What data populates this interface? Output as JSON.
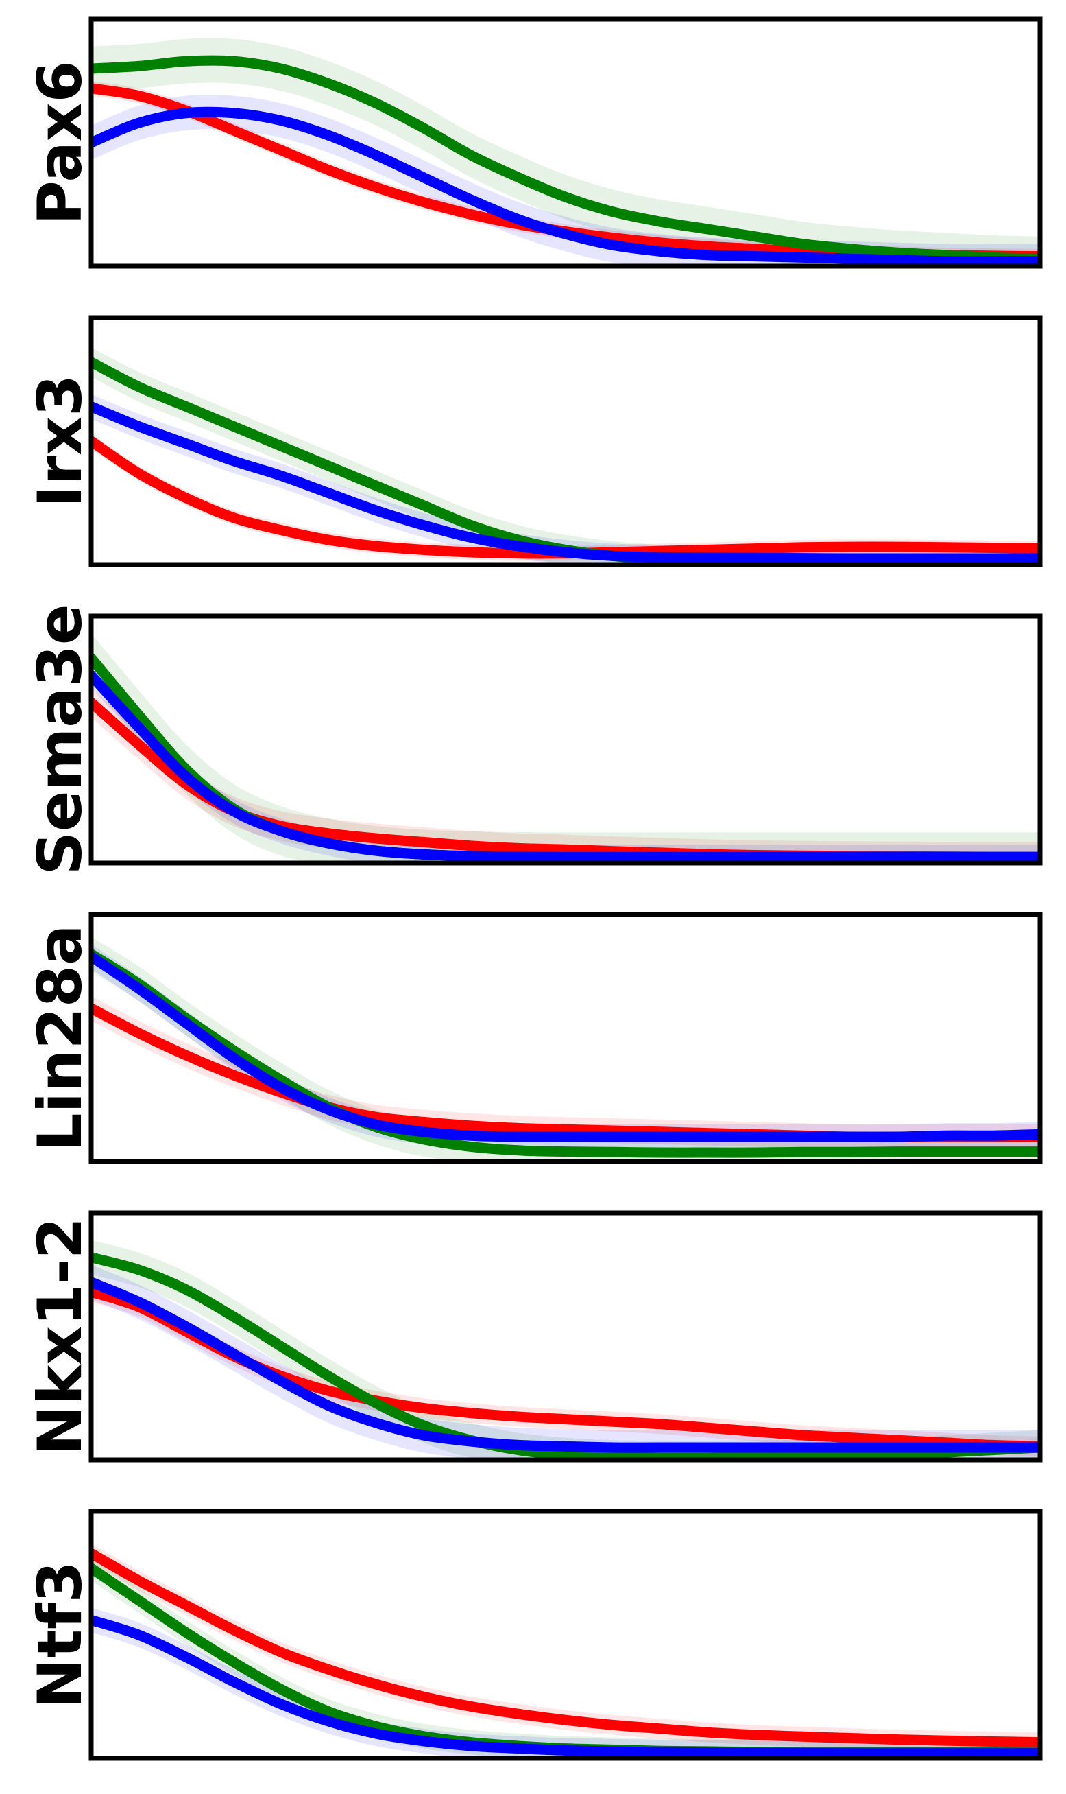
{
  "chart_data": {
    "type": "line",
    "x": [
      0,
      0.05,
      0.1,
      0.15,
      0.2,
      0.25,
      0.3,
      0.35,
      0.4,
      0.45,
      0.5,
      0.55,
      0.6,
      0.65,
      0.7,
      0.75,
      0.8,
      0.85,
      0.9,
      0.95,
      1.0
    ],
    "xlim": [
      0,
      1
    ],
    "ylim": [
      0,
      1
    ],
    "grid": false,
    "colors": [
      "#ff0000",
      "#008000",
      "#0000ff"
    ],
    "panels": [
      {
        "ylabel": "Pax6",
        "series": [
          {
            "color": "#ff0000",
            "values": [
              0.72,
              0.69,
              0.63,
              0.55,
              0.47,
              0.39,
              0.32,
              0.26,
              0.21,
              0.17,
              0.14,
              0.115,
              0.095,
              0.08,
              0.07,
              0.06,
              0.055,
              0.05,
              0.045,
              0.042,
              0.04
            ],
            "band": 0.03
          },
          {
            "color": "#008000",
            "values": [
              0.8,
              0.81,
              0.83,
              0.83,
              0.8,
              0.74,
              0.66,
              0.56,
              0.45,
              0.36,
              0.28,
              0.22,
              0.18,
              0.15,
              0.12,
              0.09,
              0.07,
              0.055,
              0.045,
              0.035,
              0.03
            ],
            "band": 0.09
          },
          {
            "color": "#0000ff",
            "values": [
              0.5,
              0.58,
              0.62,
              0.62,
              0.59,
              0.53,
              0.45,
              0.36,
              0.27,
              0.19,
              0.13,
              0.085,
              0.06,
              0.045,
              0.04,
              0.035,
              0.03,
              0.025,
              0.02,
              0.02,
              0.02
            ],
            "band": 0.07
          }
        ]
      },
      {
        "ylabel": "Irx3",
        "series": [
          {
            "color": "#ff0000",
            "values": [
              0.5,
              0.37,
              0.27,
              0.19,
              0.14,
              0.1,
              0.075,
              0.06,
              0.05,
              0.045,
              0.045,
              0.05,
              0.055,
              0.06,
              0.065,
              0.07,
              0.072,
              0.072,
              0.07,
              0.068,
              0.065
            ],
            "band": 0.03
          },
          {
            "color": "#008000",
            "values": [
              0.82,
              0.72,
              0.64,
              0.56,
              0.48,
              0.4,
              0.32,
              0.24,
              0.16,
              0.1,
              0.06,
              0.035,
              0.02,
              0.01,
              0.005,
              0.005,
              0.005,
              0.005,
              0.005,
              0.005,
              0.005
            ],
            "band": 0.06
          },
          {
            "color": "#0000ff",
            "values": [
              0.64,
              0.56,
              0.49,
              0.42,
              0.36,
              0.29,
              0.22,
              0.16,
              0.11,
              0.075,
              0.05,
              0.035,
              0.03,
              0.028,
              0.027,
              0.026,
              0.025,
              0.025,
              0.025,
              0.025,
              0.025
            ],
            "band": 0.05
          }
        ]
      },
      {
        "ylabel": "Sema3e",
        "series": [
          {
            "color": "#ff0000",
            "values": [
              0.65,
              0.48,
              0.32,
              0.21,
              0.15,
              0.12,
              0.1,
              0.085,
              0.07,
              0.06,
              0.055,
              0.048,
              0.042,
              0.036,
              0.032,
              0.03,
              0.028,
              0.027,
              0.026,
              0.025,
              0.025
            ],
            "band": 0.06
          },
          {
            "color": "#008000",
            "values": [
              0.83,
              0.6,
              0.38,
              0.22,
              0.13,
              0.08,
              0.05,
              0.035,
              0.028,
              0.025,
              0.024,
              0.024,
              0.024,
              0.024,
              0.024,
              0.024,
              0.024,
              0.024,
              0.024,
              0.024,
              0.024
            ],
            "band": 0.1
          },
          {
            "color": "#0000ff",
            "values": [
              0.76,
              0.55,
              0.35,
              0.21,
              0.13,
              0.08,
              0.05,
              0.035,
              0.028,
              0.025,
              0.024,
              0.024,
              0.024,
              0.024,
              0.024,
              0.024,
              0.024,
              0.024,
              0.024,
              0.024,
              0.024
            ],
            "band": 0.05
          }
        ]
      },
      {
        "ylabel": "Lin28a",
        "series": [
          {
            "color": "#ff0000",
            "values": [
              0.62,
              0.52,
              0.43,
              0.35,
              0.28,
              0.22,
              0.18,
              0.16,
              0.145,
              0.135,
              0.13,
              0.125,
              0.12,
              0.115,
              0.11,
              0.105,
              0.1,
              0.1,
              0.1,
              0.1,
              0.1
            ],
            "band": 0.05
          },
          {
            "color": "#008000",
            "values": [
              0.84,
              0.72,
              0.58,
              0.45,
              0.33,
              0.22,
              0.14,
              0.09,
              0.06,
              0.045,
              0.04,
              0.038,
              0.036,
              0.036,
              0.036,
              0.038,
              0.038,
              0.04,
              0.04,
              0.04,
              0.04
            ],
            "band": 0.07
          },
          {
            "color": "#0000ff",
            "values": [
              0.83,
              0.7,
              0.56,
              0.42,
              0.3,
              0.21,
              0.15,
              0.12,
              0.105,
              0.1,
              0.1,
              0.1,
              0.1,
              0.1,
              0.1,
              0.1,
              0.1,
              0.1,
              0.105,
              0.105,
              0.11
            ],
            "band": 0.05
          }
        ]
      },
      {
        "ylabel": "Nkx1-2",
        "series": [
          {
            "color": "#ff0000",
            "values": [
              0.68,
              0.62,
              0.52,
              0.42,
              0.34,
              0.28,
              0.24,
              0.21,
              0.19,
              0.175,
              0.165,
              0.155,
              0.145,
              0.13,
              0.115,
              0.1,
              0.09,
              0.08,
              0.07,
              0.06,
              0.055
            ],
            "band": 0.04
          },
          {
            "color": "#008000",
            "values": [
              0.82,
              0.77,
              0.69,
              0.58,
              0.46,
              0.34,
              0.23,
              0.14,
              0.08,
              0.04,
              0.02,
              0.01,
              0.008,
              0.008,
              0.01,
              0.012,
              0.015,
              0.02,
              0.03,
              0.04,
              0.05
            ],
            "band": 0.07
          },
          {
            "color": "#0000ff",
            "values": [
              0.72,
              0.64,
              0.54,
              0.43,
              0.32,
              0.22,
              0.15,
              0.1,
              0.075,
              0.06,
              0.055,
              0.05,
              0.05,
              0.05,
              0.05,
              0.05,
              0.05,
              0.05,
              0.05,
              0.05,
              0.05
            ],
            "band": 0.07
          }
        ]
      },
      {
        "ylabel": "Ntf3",
        "series": [
          {
            "color": "#ff0000",
            "values": [
              0.83,
              0.72,
              0.62,
              0.52,
              0.43,
              0.36,
              0.3,
              0.25,
              0.21,
              0.18,
              0.155,
              0.135,
              0.12,
              0.105,
              0.095,
              0.088,
              0.082,
              0.076,
              0.072,
              0.068,
              0.065
            ],
            "band": 0.04
          },
          {
            "color": "#008000",
            "values": [
              0.77,
              0.64,
              0.51,
              0.39,
              0.28,
              0.19,
              0.13,
              0.09,
              0.065,
              0.05,
              0.04,
              0.035,
              0.03,
              0.028,
              0.026,
              0.025,
              0.025,
              0.025,
              0.025,
              0.025,
              0.025
            ],
            "band": 0.05
          },
          {
            "color": "#0000ff",
            "values": [
              0.56,
              0.5,
              0.41,
              0.31,
              0.22,
              0.15,
              0.1,
              0.07,
              0.05,
              0.04,
              0.032,
              0.028,
              0.025,
              0.023,
              0.022,
              0.021,
              0.02,
              0.02,
              0.02,
              0.02,
              0.02
            ],
            "band": 0.05
          }
        ]
      }
    ]
  }
}
